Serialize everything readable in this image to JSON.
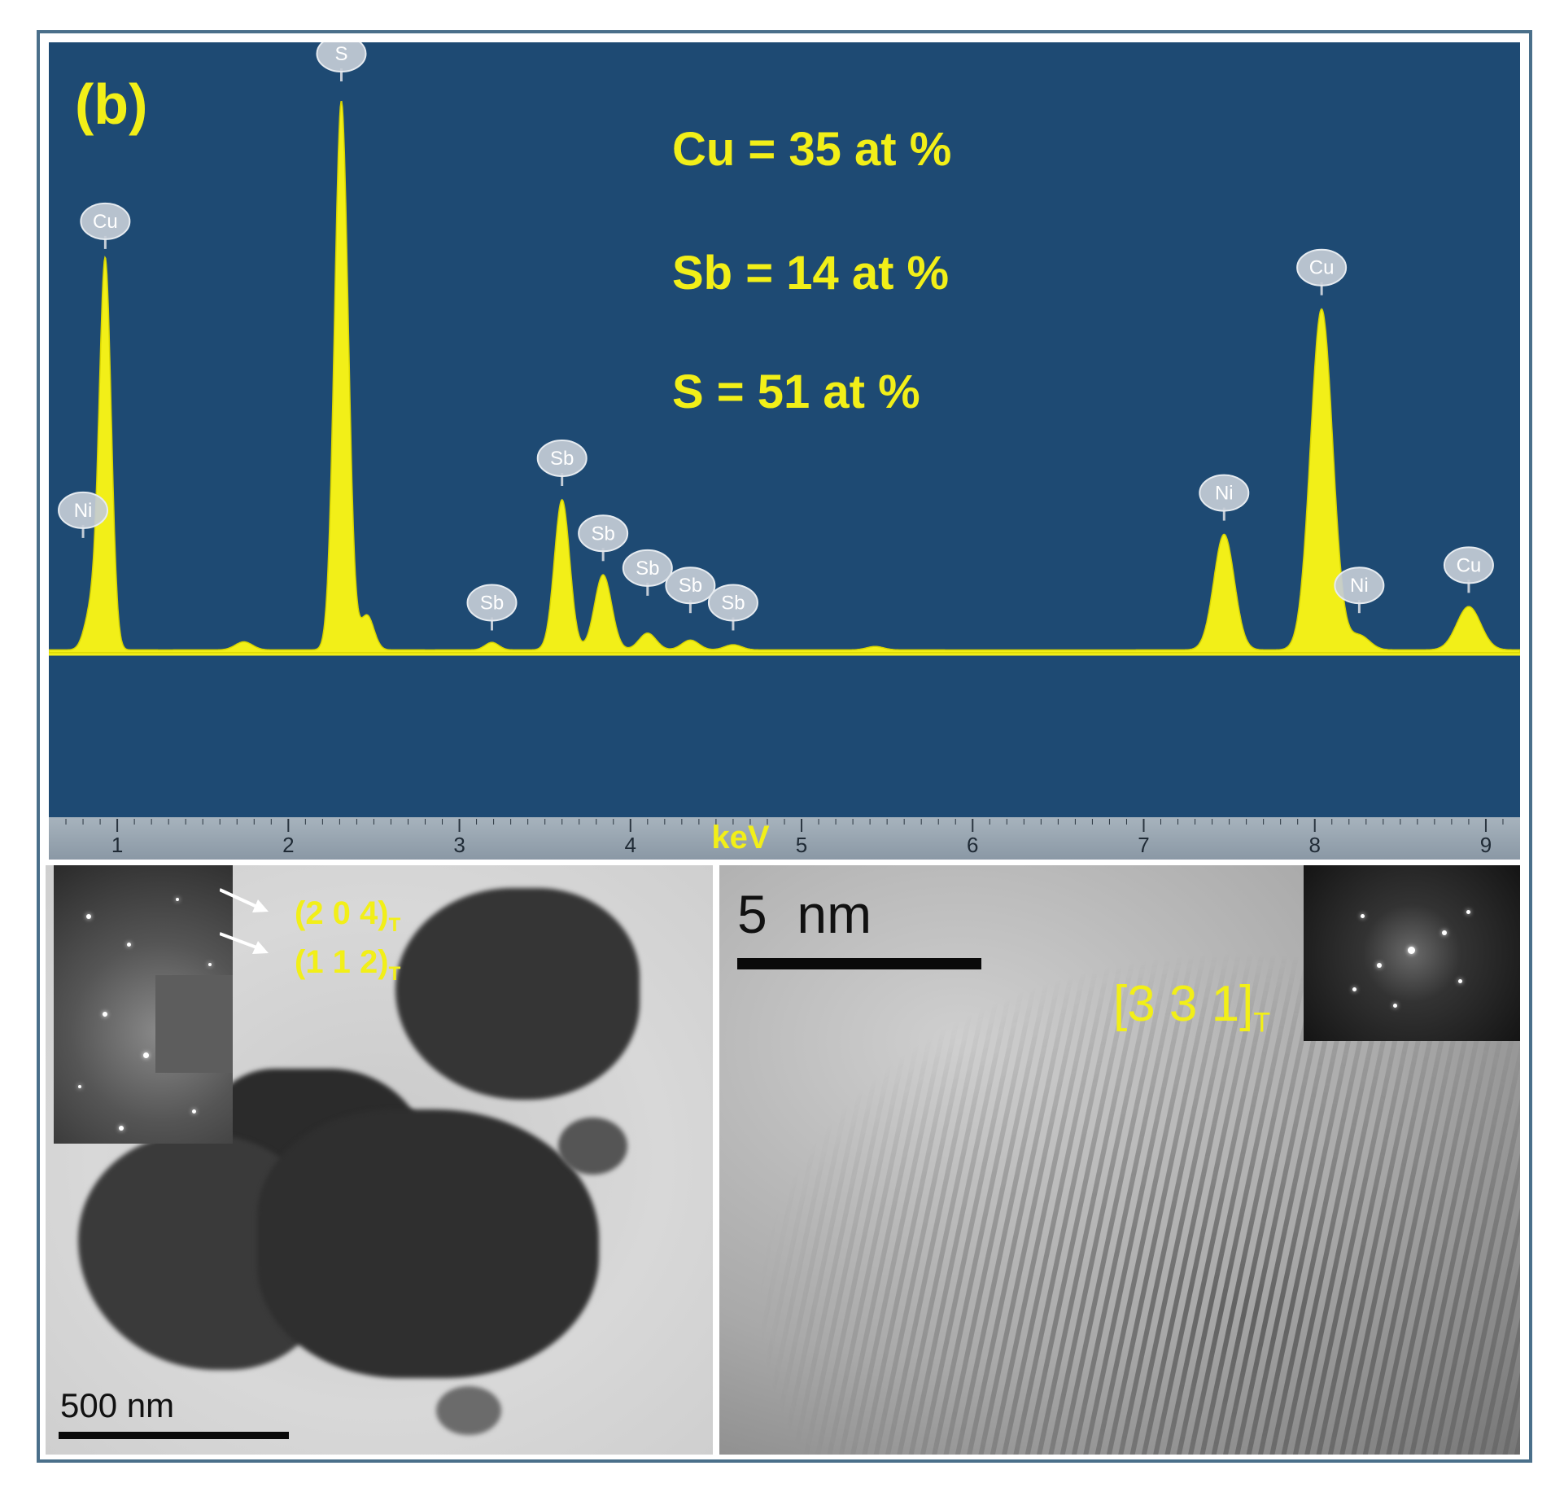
{
  "colors": {
    "panel_bg": "#1e4a73",
    "spectrum_fill": "#f2ef18",
    "label_yellow": "#f2ef18",
    "marker_fill": "#c4ccd6",
    "frame": "#4a6f8a"
  },
  "panel_label": "(b)",
  "composition": [
    "Cu = 35 at %",
    "Sb = 14 at %",
    "S = 51 at %"
  ],
  "chart_data": {
    "type": "area",
    "xlabel": "keV",
    "xlim": [
      0.6,
      9.2
    ],
    "ylim": [
      0,
      100
    ],
    "x_ticks": [
      "1",
      "2",
      "3",
      "4",
      "5",
      "6",
      "7",
      "8",
      "9"
    ],
    "grid": false,
    "peaks": [
      {
        "element": "Ni",
        "x": 0.85,
        "height": 7,
        "width": 0.04
      },
      {
        "element": "Cu",
        "x": 0.93,
        "height": 67,
        "width": 0.035
      },
      {
        "element": "",
        "x": 1.74,
        "height": 1.4,
        "width": 0.05
      },
      {
        "element": "S",
        "x": 2.31,
        "height": 95,
        "width": 0.04
      },
      {
        "element": "",
        "x": 2.46,
        "height": 6,
        "width": 0.04
      },
      {
        "element": "Sb",
        "x": 3.19,
        "height": 1.3,
        "width": 0.04
      },
      {
        "element": "Sb",
        "x": 3.6,
        "height": 26,
        "width": 0.045
      },
      {
        "element": "Sb",
        "x": 3.84,
        "height": 13,
        "width": 0.05
      },
      {
        "element": "Sb",
        "x": 4.1,
        "height": 2.9,
        "width": 0.05
      },
      {
        "element": "Sb",
        "x": 4.35,
        "height": 1.7,
        "width": 0.05
      },
      {
        "element": "Sb",
        "x": 4.6,
        "height": 0.9,
        "width": 0.05
      },
      {
        "element": "",
        "x": 5.43,
        "height": 0.6,
        "width": 0.05
      },
      {
        "element": "Ni",
        "x": 7.47,
        "height": 20,
        "width": 0.06
      },
      {
        "element": "Cu",
        "x": 8.04,
        "height": 59,
        "width": 0.065
      },
      {
        "element": "Ni",
        "x": 8.26,
        "height": 2.5,
        "width": 0.06
      },
      {
        "element": "Cu",
        "x": 8.9,
        "height": 7.5,
        "width": 0.07
      }
    ],
    "markers": [
      {
        "label": "Ni",
        "x": 0.8,
        "y": 21
      },
      {
        "label": "Cu",
        "x": 0.93,
        "y": 71
      },
      {
        "label": "S",
        "x": 2.31,
        "y": 100
      },
      {
        "label": "Sb",
        "x": 3.19,
        "y": 5
      },
      {
        "label": "Sb",
        "x": 3.6,
        "y": 30
      },
      {
        "label": "Sb",
        "x": 3.84,
        "y": 17
      },
      {
        "label": "Sb",
        "x": 4.1,
        "y": 11
      },
      {
        "label": "Sb",
        "x": 4.35,
        "y": 8
      },
      {
        "label": "Sb",
        "x": 4.6,
        "y": 5
      },
      {
        "label": "Ni",
        "x": 7.47,
        "y": 24
      },
      {
        "label": "Cu",
        "x": 8.04,
        "y": 63
      },
      {
        "label": "Ni",
        "x": 8.26,
        "y": 8
      },
      {
        "label": "Cu",
        "x": 8.9,
        "y": 11.5
      }
    ]
  },
  "tem_low": {
    "scale_label": "500 nm",
    "saed_labels": [
      {
        "main": "(2 0 4)",
        "sub": "T"
      },
      {
        "main": "(1 1 2)",
        "sub": "T"
      }
    ]
  },
  "hrtem": {
    "scale_label": "5  nm",
    "zone_axis": {
      "main": "[3 3 1]",
      "sub": "T"
    }
  }
}
